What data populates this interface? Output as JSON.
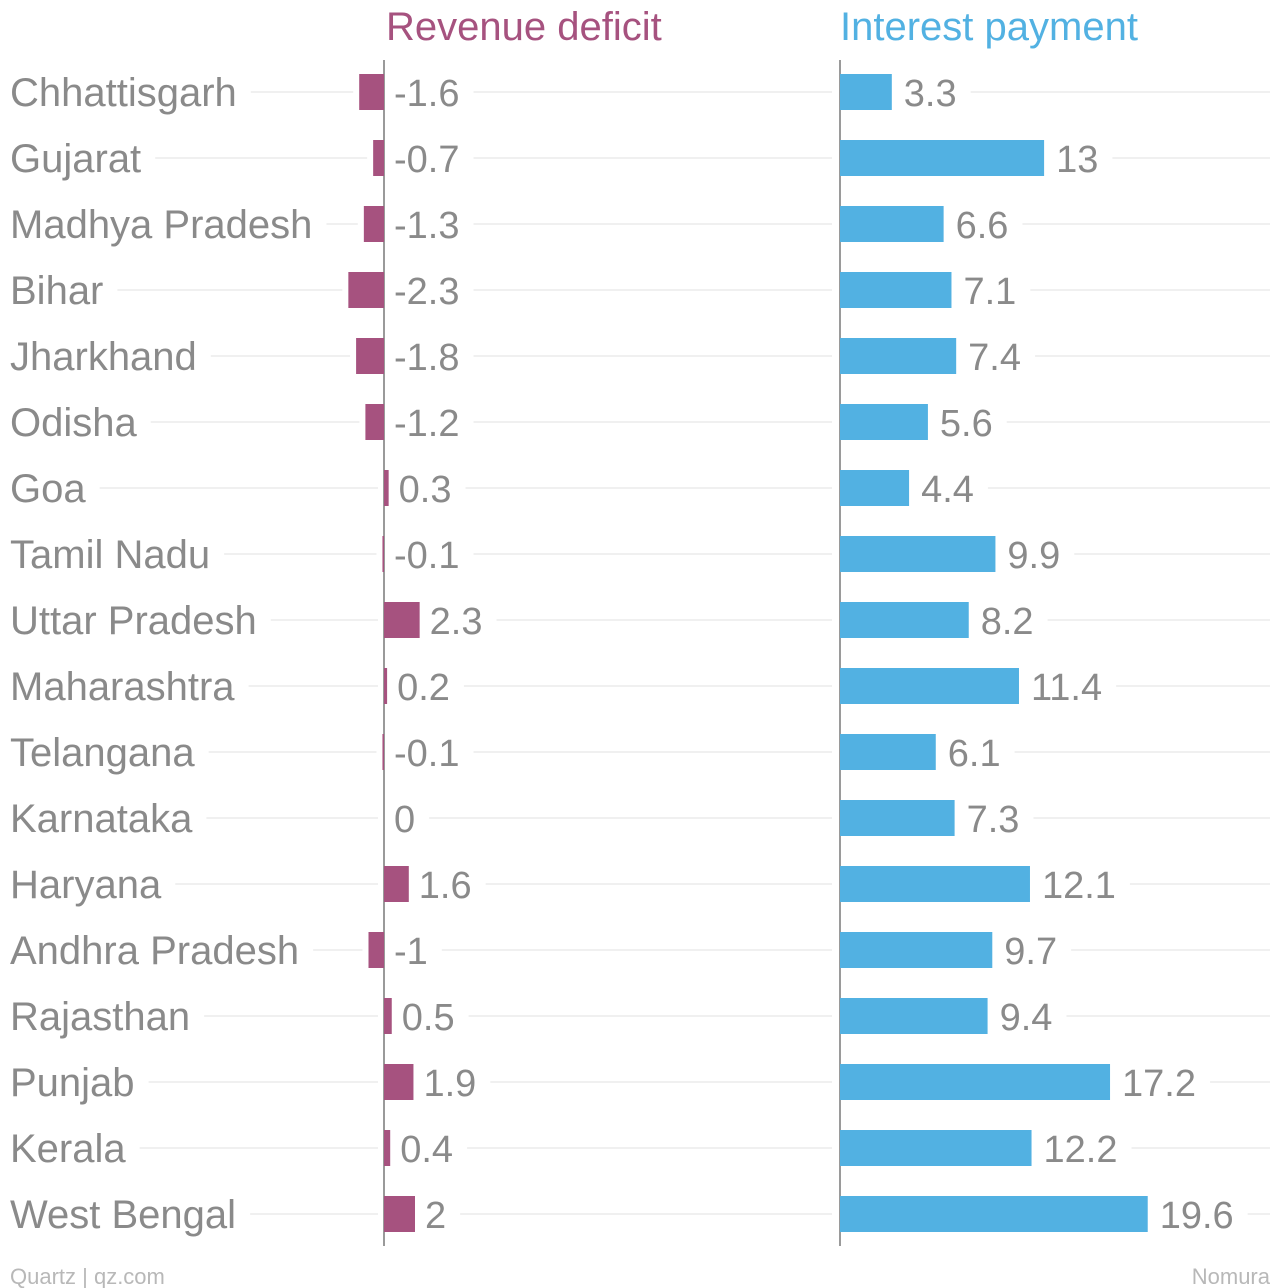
{
  "chart_data": {
    "type": "bar",
    "orientation": "horizontal",
    "categories": [
      "Chhattisgarh",
      "Gujarat",
      "Madhya Pradesh",
      "Bihar",
      "Jharkhand",
      "Odisha",
      "Goa",
      "Tamil Nadu",
      "Uttar Pradesh",
      "Maharashtra",
      "Telangana",
      "Karnataka",
      "Haryana",
      "Andhra Pradesh",
      "Rajasthan",
      "Punjab",
      "Kerala",
      "West Bengal"
    ],
    "value_labels": {
      "revenue_deficit": [
        "-1.6",
        "-0.7",
        "-1.3",
        "-2.3",
        "-1.8",
        "-1.2",
        "0.3",
        "-0.1",
        "2.3",
        "0.2",
        "-0.1",
        "0",
        "1.6",
        "-1",
        "0.5",
        "1.9",
        "0.4",
        "2"
      ],
      "interest_payment": [
        "3.3",
        "13",
        "6.6",
        "7.1",
        "7.4",
        "5.6",
        "4.4",
        "9.9",
        "8.2",
        "11.4",
        "6.1",
        "7.3",
        "12.1",
        "9.7",
        "9.4",
        "17.2",
        "12.2",
        "19.6"
      ]
    },
    "series": [
      {
        "name": "Revenue deficit",
        "color": "#a6527f",
        "values": [
          -1.6,
          -0.7,
          -1.3,
          -2.3,
          -1.8,
          -1.2,
          0.3,
          -0.1,
          2.3,
          0.2,
          -0.1,
          0,
          1.6,
          -1,
          0.5,
          1.9,
          0.4,
          2
        ]
      },
      {
        "name": "Interest payment",
        "color": "#52b1e2",
        "values": [
          3.3,
          13,
          6.6,
          7.1,
          7.4,
          5.6,
          4.4,
          9.9,
          8.2,
          11.4,
          6.1,
          7.3,
          12.1,
          9.7,
          9.4,
          17.2,
          12.2,
          19.6
        ]
      }
    ],
    "legend": "panel titles above each column",
    "grid": true
  },
  "footer": {
    "credit": "Quartz | qz.com",
    "source": "Nomura"
  }
}
